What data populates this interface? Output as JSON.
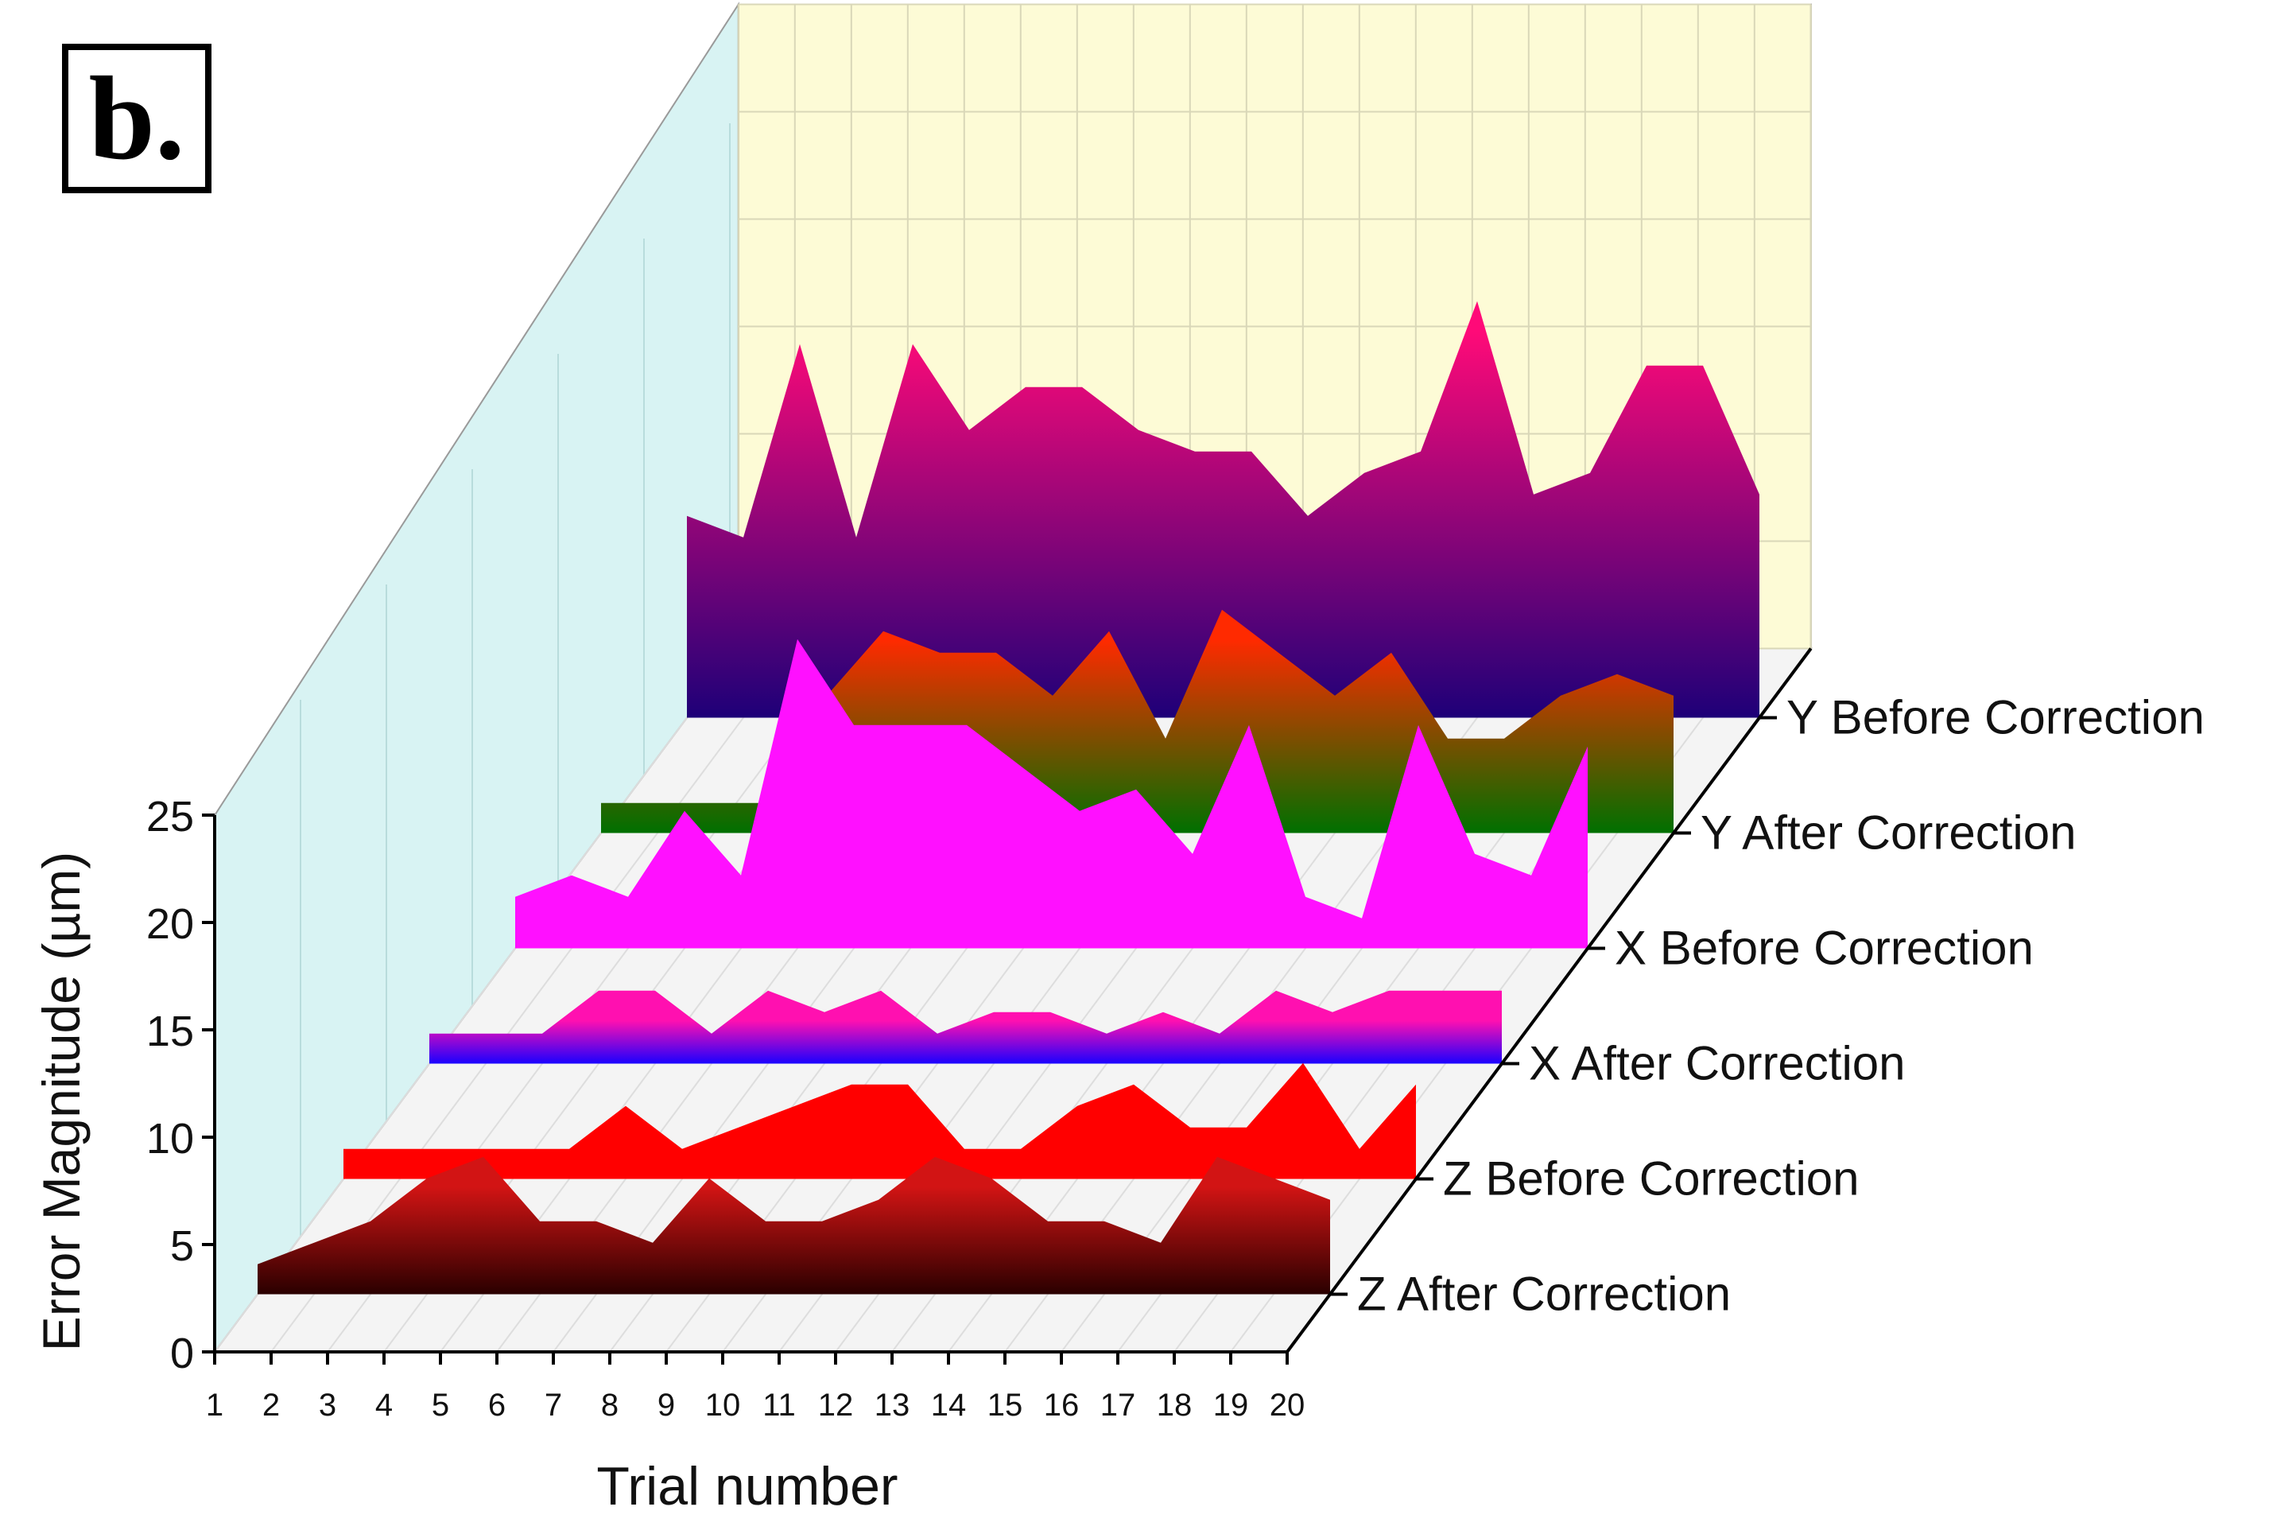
{
  "panel_label": "b.",
  "chart_data": {
    "type": "area",
    "title": "",
    "xlabel": "Trial number",
    "ylabel": "Error Magnitude (µm)",
    "x": [
      1,
      2,
      3,
      4,
      5,
      6,
      7,
      8,
      9,
      10,
      11,
      12,
      13,
      14,
      15,
      16,
      17,
      18,
      19,
      20
    ],
    "ylim": [
      0,
      25
    ],
    "yticks": [
      0,
      5,
      10,
      15,
      20,
      25
    ],
    "grid": true,
    "series": [
      {
        "name": "Z After Correction",
        "values": [
          0,
          1,
          2,
          4,
          5,
          2,
          2,
          1,
          4,
          2,
          2,
          3,
          5,
          4,
          2,
          2,
          1,
          5,
          4,
          3
        ]
      },
      {
        "name": "Z Before Correction",
        "values": [
          0,
          0,
          0,
          0,
          0,
          2,
          0,
          1,
          2,
          3,
          3,
          0,
          0,
          2,
          3,
          1,
          1,
          4,
          0,
          3
        ]
      },
      {
        "name": "X After Correction",
        "values": [
          0,
          0,
          0,
          2,
          2,
          0,
          2,
          1,
          2,
          0,
          1,
          1,
          0,
          1,
          0,
          2,
          1,
          2,
          2,
          2
        ]
      },
      {
        "name": "X Before Correction",
        "values": [
          1,
          2,
          1,
          5,
          2,
          13,
          9,
          9,
          9,
          7,
          5,
          6,
          3,
          9,
          1,
          0,
          9,
          3,
          2,
          8
        ]
      },
      {
        "name": "Y After Correction",
        "values": [
          0,
          0,
          0,
          0,
          5,
          8,
          7,
          7,
          5,
          8,
          3,
          9,
          7,
          5,
          7,
          3,
          3,
          5,
          6,
          5
        ]
      },
      {
        "name": "Y Before Correction",
        "values": [
          8,
          7,
          16,
          7,
          16,
          12,
          14,
          14,
          12,
          11,
          11,
          8,
          10,
          11,
          18,
          9,
          10,
          15,
          15,
          9
        ]
      }
    ],
    "colors": {
      "Z After Correction": {
        "top": "#d21414",
        "bottom": "#2a0000"
      },
      "Z Before Correction": {
        "top": "#ff0000",
        "bottom": "#ff0000"
      },
      "X After Correction": {
        "top": "#ff10b0",
        "bottom": "#1a00ff"
      },
      "X Before Correction": {
        "top": "#ff10ff",
        "bottom": "#ff10ff"
      },
      "Y After Correction": {
        "top": "#ff2a00",
        "bottom": "#007000"
      },
      "Y Before Correction": {
        "top": "#ff0a78",
        "bottom": "#1e0078"
      },
      "back_wall": "#fdfbd6",
      "side_wall": "#d8f3f3",
      "floor": "#f4f4f4"
    }
  }
}
